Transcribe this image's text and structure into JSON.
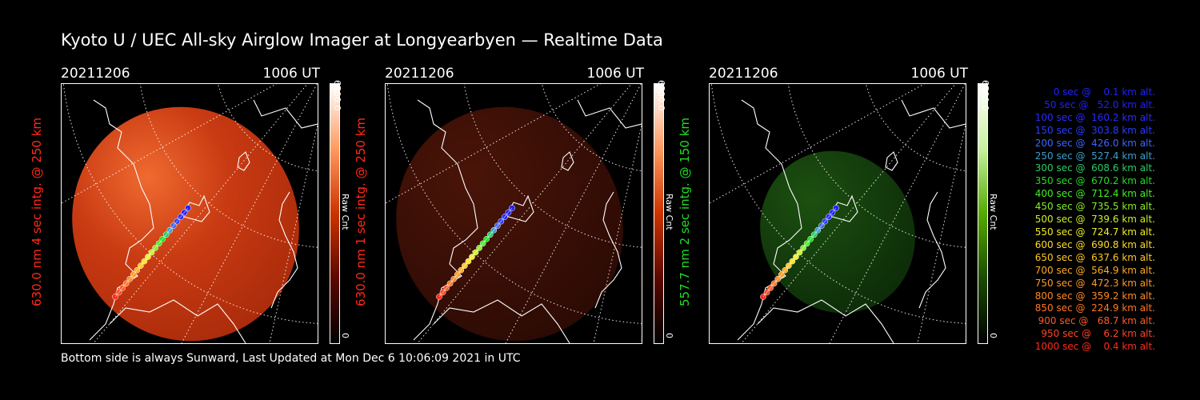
{
  "title": "Kyoto U / UEC All-sky Airglow Imager at Longyearbyen — Realtime Data",
  "panels": [
    {
      "date": "20211206",
      "time": "1006 UT",
      "ylabel": "630.0 nm 4 sec intg. @ 250 km",
      "label_color": "#ff2a1a",
      "cbar_max": "6500.0",
      "cbar_unit": "Raw Cnt",
      "cbar_min": "0",
      "hue": "red",
      "intensity": 1.0
    },
    {
      "date": "20211206",
      "time": "1006 UT",
      "ylabel": "630.0 nm 1 sec intg. @ 250 km",
      "label_color": "#ff2a1a",
      "cbar_max": "6500.0",
      "cbar_unit": "Raw Cnt",
      "cbar_min": "0",
      "hue": "red",
      "intensity": 0.3
    },
    {
      "date": "20211206",
      "time": "1006 UT",
      "ylabel": "557.7 nm 2 sec intg. @ 150 km",
      "label_color": "#22dd22",
      "cbar_max": "6500.0",
      "cbar_unit": "Raw Cnt",
      "cbar_min": "0",
      "hue": "green",
      "intensity": 0.3
    }
  ],
  "footer": "Bottom side is always Sunward, Last Updated at Mon Dec  6 10:06:09 2021 in UTC",
  "legend": [
    {
      "text": "0 sec @    0.1 km alt.",
      "color": "#2020ff"
    },
    {
      "text": "50 sec @   52.0 km alt.",
      "color": "#2020ff"
    },
    {
      "text": "100 sec @  160.2 km alt.",
      "color": "#2a2aff"
    },
    {
      "text": "150 sec @  303.8 km alt.",
      "color": "#2a3cff"
    },
    {
      "text": "200 sec @  426.0 km alt.",
      "color": "#3c64ff"
    },
    {
      "text": "250 sec @  527.4 km alt.",
      "color": "#3ca0c8"
    },
    {
      "text": "300 sec @  608.6 km alt.",
      "color": "#2acc66"
    },
    {
      "text": "350 sec @  670.2 km alt.",
      "color": "#22dd22"
    },
    {
      "text": "400 sec @  712.4 km alt.",
      "color": "#44ee22"
    },
    {
      "text": "450 sec @  735.5 km alt.",
      "color": "#88ee22"
    },
    {
      "text": "500 sec @  739.6 km alt.",
      "color": "#ccee22"
    },
    {
      "text": "550 sec @  724.7 km alt.",
      "color": "#eeee22"
    },
    {
      "text": "600 sec @  690.8 km alt.",
      "color": "#ffdd22"
    },
    {
      "text": "650 sec @  637.6 km alt.",
      "color": "#ffc822"
    },
    {
      "text": "700 sec @  564.9 km alt.",
      "color": "#ffaa22"
    },
    {
      "text": "750 sec @  472.3 km alt.",
      "color": "#ff9922"
    },
    {
      "text": "800 sec @  359.2 km alt.",
      "color": "#ff8822"
    },
    {
      "text": "850 sec @  224.9 km alt.",
      "color": "#ff7722"
    },
    {
      "text": "900 sec @   68.7 km alt.",
      "color": "#ff5a22"
    },
    {
      "text": "950 sec @    6.2 km alt.",
      "color": "#ff4422"
    },
    {
      "text": "1000 sec @    0.4 km alt.",
      "color": "#ff2a1a"
    }
  ]
}
